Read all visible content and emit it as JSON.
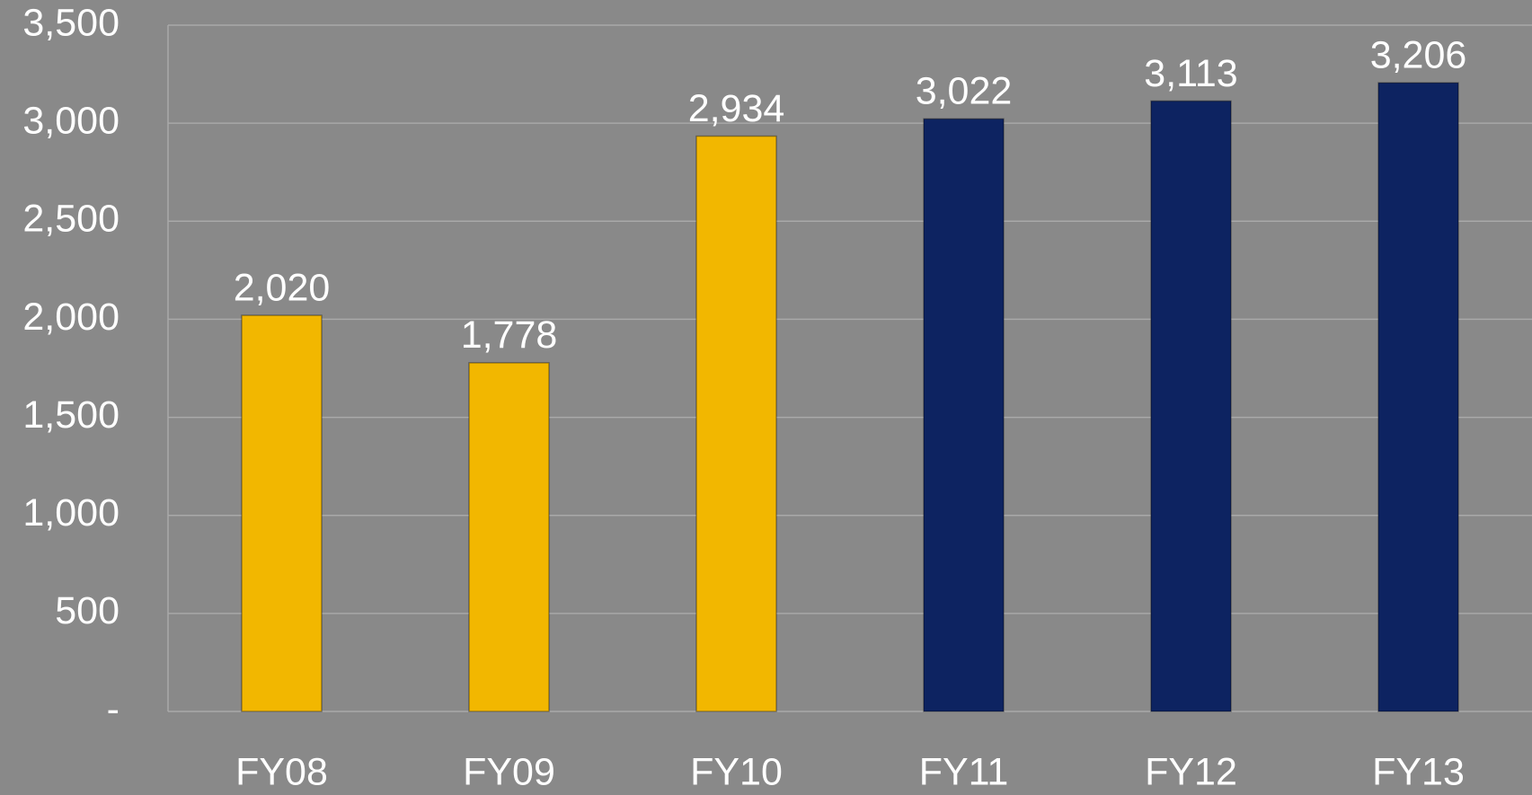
{
  "chart_data": {
    "type": "bar",
    "categories": [
      "FY08",
      "FY09",
      "FY10",
      "FY11",
      "FY12",
      "FY13"
    ],
    "values": [
      2020,
      1778,
      2934,
      3022,
      3113,
      3206
    ],
    "value_labels": [
      "2,020",
      "1,778",
      "2,934",
      "3,022",
      "3,113",
      "3,206"
    ],
    "colors": [
      "#f2b700",
      "#f2b700",
      "#f2b700",
      "#0d2361",
      "#0d2361",
      "#0d2361"
    ],
    "ylim": [
      0,
      3500
    ],
    "yticks": [
      {
        "value": 0,
        "label": "-"
      },
      500,
      {
        "value": 1000,
        "label": "1,000"
      },
      {
        "value": 1500,
        "label": "1,500"
      },
      {
        "value": 2000,
        "label": "2,000"
      },
      {
        "value": 2500,
        "label": "2,500"
      },
      {
        "value": 3000,
        "label": "3,000"
      },
      {
        "value": 3500,
        "label": "3,500"
      }
    ],
    "grid": true
  }
}
